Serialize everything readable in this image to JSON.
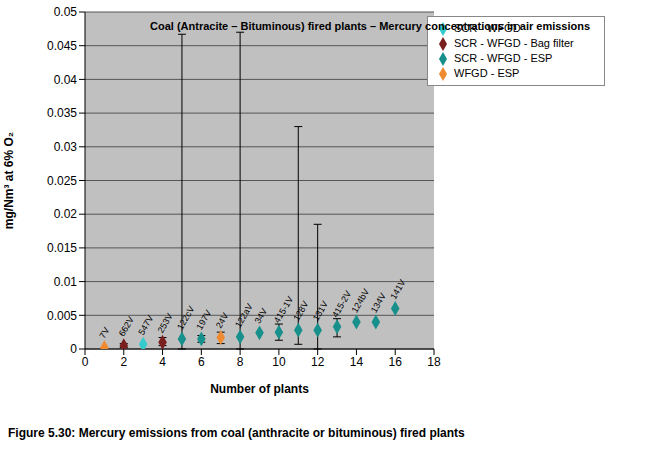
{
  "chart_data": {
    "type": "scatter",
    "title": "Coal (Antracite – Bituminous) fired plants – Mercury concentrations in air emissions",
    "x_label": "Number of plants",
    "y_label": "mg/Nm³ at 6% O₂",
    "caption": "Figure 5.30: Mercury emissions from coal (anthracite or bituminous) fired plants",
    "xlim": [
      0,
      18
    ],
    "xticks": [
      0,
      2,
      4,
      6,
      8,
      10,
      12,
      14,
      16,
      18
    ],
    "ylim": [
      0,
      0.05
    ],
    "yticks": [
      0,
      0.005,
      0.01,
      0.015,
      0.02,
      0.025,
      0.03,
      0.035,
      0.04,
      0.045,
      0.05
    ],
    "grid": true,
    "legend": "upper right",
    "marker": "diamond",
    "series": [
      {
        "name": "WFGD - ESP",
        "color": "#f08a30",
        "x": [
          1,
          7
        ],
        "values": [
          0.0002,
          0.0017
        ],
        "point_labels": [
          "7V",
          "24V"
        ],
        "error_low": [
          null,
          0.0008
        ],
        "error_high": [
          null,
          0.0025
        ]
      },
      {
        "name": "SCR - WFGD - Bag filter",
        "color": "#7a1e1e",
        "x": [
          2,
          4
        ],
        "values": [
          0.0005,
          0.001
        ],
        "point_labels": [
          "662V",
          "253V"
        ],
        "error_low": [
          0.0002,
          0.0005
        ],
        "error_high": [
          0.0008,
          0.0017
        ]
      },
      {
        "name": "SCR - WFGD - ESP",
        "color": "#17908c",
        "x": [
          5,
          6,
          8,
          9,
          10,
          11,
          12,
          13,
          14,
          15,
          16
        ],
        "values": [
          0.0015,
          0.0015,
          0.0018,
          0.0024,
          0.0025,
          0.0028,
          0.0028,
          0.0033,
          0.004,
          0.004,
          0.006
        ],
        "point_labels": [
          "122cV",
          "197V",
          "122aV",
          "34V",
          "415-1V",
          "128V",
          "131V",
          "415-2V",
          "124bV",
          "134V",
          "141V"
        ],
        "error_low": [
          0,
          0.001,
          0,
          null,
          0.0013,
          0.0007,
          0,
          0.0018,
          null,
          null,
          null
        ],
        "error_high": [
          0.0467,
          0.002,
          0.047,
          null,
          0.0037,
          0.033,
          0.0185,
          0.0045,
          null,
          null,
          null
        ]
      },
      {
        "name": "SCR - WFGD",
        "color": "#33cccc",
        "x": [
          3
        ],
        "values": [
          0.0007
        ],
        "point_labels": [
          "547V"
        ],
        "error_low": [
          null
        ],
        "error_high": [
          null
        ]
      }
    ]
  }
}
